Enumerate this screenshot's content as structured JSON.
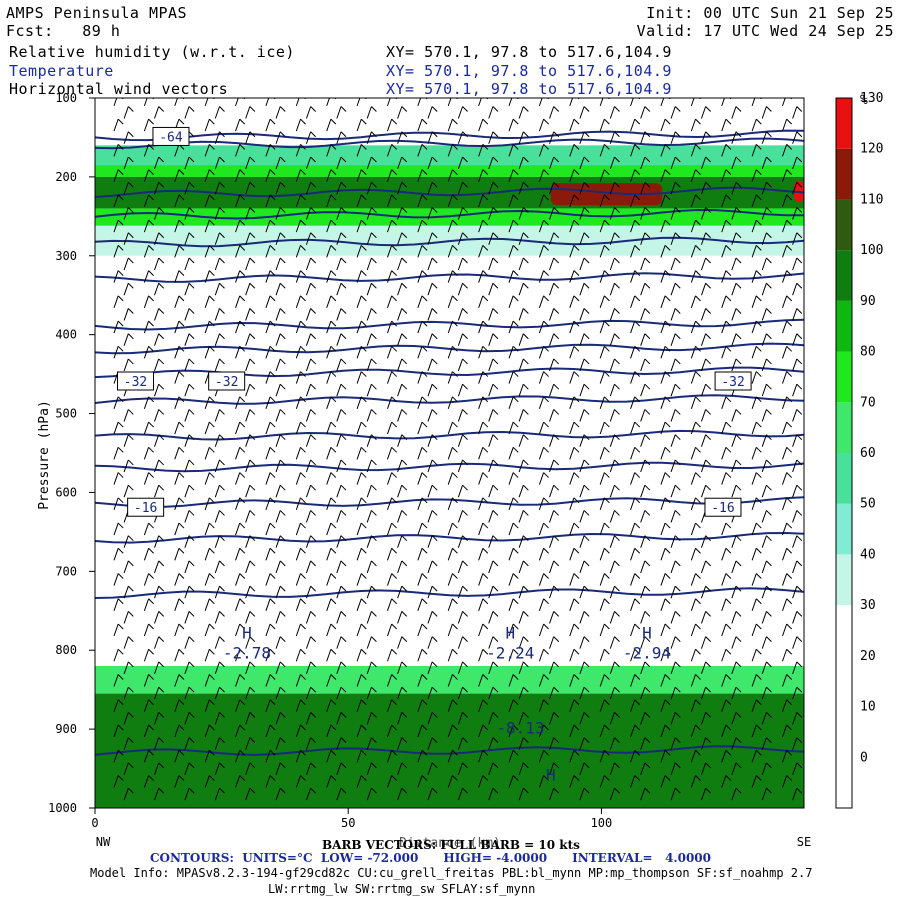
{
  "header": {
    "product": "AMPS Peninsula MPAS",
    "fcst": "Fcst:   89 h",
    "init": "Init: 00 UTC Sun 21 Sep 25",
    "valid": "Valid: 17 UTC Wed 24 Sep 25",
    "fields": [
      {
        "name": "Relative humidity (w.r.t. ice)",
        "xy": "XY= 570.1, 97.8 to 517.6,104.9"
      },
      {
        "name": "Temperature",
        "xy": "XY= 570.1, 97.8 to 517.6,104.9"
      },
      {
        "name": "Horizontal wind vectors",
        "xy": "XY= 570.1, 97.8 to 517.6,104.9"
      }
    ]
  },
  "chart_data": {
    "type": "heatmap",
    "title": "Relative humidity (w.r.t. ice)",
    "ylabel": "Pressure (hPa)",
    "xlabel": "Distance (km)",
    "x_ticks": [
      "0",
      "50",
      "100"
    ],
    "y_ticks": [
      "100",
      "200",
      "300",
      "400",
      "500",
      "600",
      "700",
      "800",
      "900",
      "1000"
    ],
    "x_end_labels": {
      "left": "NW",
      "right": "SE"
    },
    "xlim": [
      0,
      140
    ],
    "ylim": [
      1000,
      100
    ],
    "colorbar": {
      "unit": "%",
      "labels": [
        "0",
        "10",
        "20",
        "30",
        "40",
        "50",
        "60",
        "70",
        "80",
        "90",
        "100",
        "110",
        "120",
        "130"
      ],
      "levels": [
        0,
        10,
        20,
        30,
        40,
        50,
        60,
        70,
        80,
        90,
        100,
        110,
        120,
        130,
        140
      ],
      "colors": [
        "#ffffff",
        "#ffffff",
        "#ffffff",
        "#ffffff",
        "#c4f5e6",
        "#80ecd2",
        "#48e09a",
        "#3fe86a",
        "#1fe81f",
        "#0fb80f",
        "#0f7d0f",
        "#2f5a10",
        "#8c1a0a",
        "#e81010"
      ]
    },
    "humidity_bands": [
      {
        "p_top": 160,
        "p_bottom": 185,
        "value": 60
      },
      {
        "p_top": 185,
        "p_bottom": 200,
        "value": 85
      },
      {
        "p_top": 200,
        "p_bottom": 240,
        "value": 105
      },
      {
        "p_top": 240,
        "p_bottom": 262,
        "value": 80
      },
      {
        "p_top": 262,
        "p_bottom": 300,
        "value": 45
      },
      {
        "p_top": 300,
        "p_bottom": 340,
        "value": 35
      },
      {
        "p_top": 820,
        "p_bottom": 855,
        "value": 75
      },
      {
        "p_top": 855,
        "p_bottom": 1000,
        "value": 105
      }
    ],
    "humidity_patches": [
      {
        "x0": 90,
        "x1": 112,
        "p_top": 208,
        "p_bottom": 236,
        "value": 125
      },
      {
        "x0": 138,
        "x1": 140,
        "p_top": 205,
        "p_bottom": 232,
        "value": 130
      }
    ],
    "temperature_contour_labels": [
      "-64",
      "-32",
      "-32",
      "-32",
      "-16",
      "-16"
    ],
    "temperature_contours": [
      {
        "level": -64,
        "p": 150
      },
      {
        "level": -60,
        "p": 160
      },
      {
        "level": -56,
        "p": 222
      },
      {
        "level": -52,
        "p": 250
      },
      {
        "level": -48,
        "p": 285
      },
      {
        "level": -44,
        "p": 330
      },
      {
        "level": -40,
        "p": 390
      },
      {
        "level": -36,
        "p": 420
      },
      {
        "level": -32,
        "p": 450
      },
      {
        "level": -28,
        "p": 485
      },
      {
        "level": -24,
        "p": 530
      },
      {
        "level": -20,
        "p": 570
      },
      {
        "level": -16,
        "p": 615
      },
      {
        "level": -12,
        "p": 660
      },
      {
        "level": -8,
        "p": 730
      },
      {
        "level": -4,
        "p": 930
      }
    ],
    "extrema_labels": [
      {
        "symbol": "H",
        "value": "-2.78",
        "x": 30,
        "p": 785
      },
      {
        "symbol": "H",
        "value": "-2.24",
        "x": 82,
        "p": 785
      },
      {
        "symbol": "H",
        "value": "-2.94",
        "x": 109,
        "p": 785
      },
      {
        "symbol": "",
        "value": "-8.13",
        "x": 84,
        "p": 880
      },
      {
        "symbol": "H",
        "value": "",
        "x": 90,
        "p": 965
      }
    ],
    "barb_note": "BARB VECTORS: FULL BARB = 10 kts"
  },
  "footer": {
    "barb": "BARB VECTORS: FULL BARB = 10 kts",
    "contours": "CONTOURS:  UNITS=°C  LOW= -72.000      HIGH= -4.0000      INTERVAL=   4.0000",
    "model_info": "Model Info: MPASv8.2.3-194-gf29cd82c CU:cu_grell_freitas PBL:bl_mynn MP:mp_thompson SF:sf_noahmp 2.7",
    "model_info2": "LW:rrtmg_lw SW:rrtmg_sw SFLAY:sf_mynn"
  },
  "colors": {
    "contour": "#1a2a7a",
    "header_blue": "#1a2a9c",
    "barb": "#000000"
  }
}
